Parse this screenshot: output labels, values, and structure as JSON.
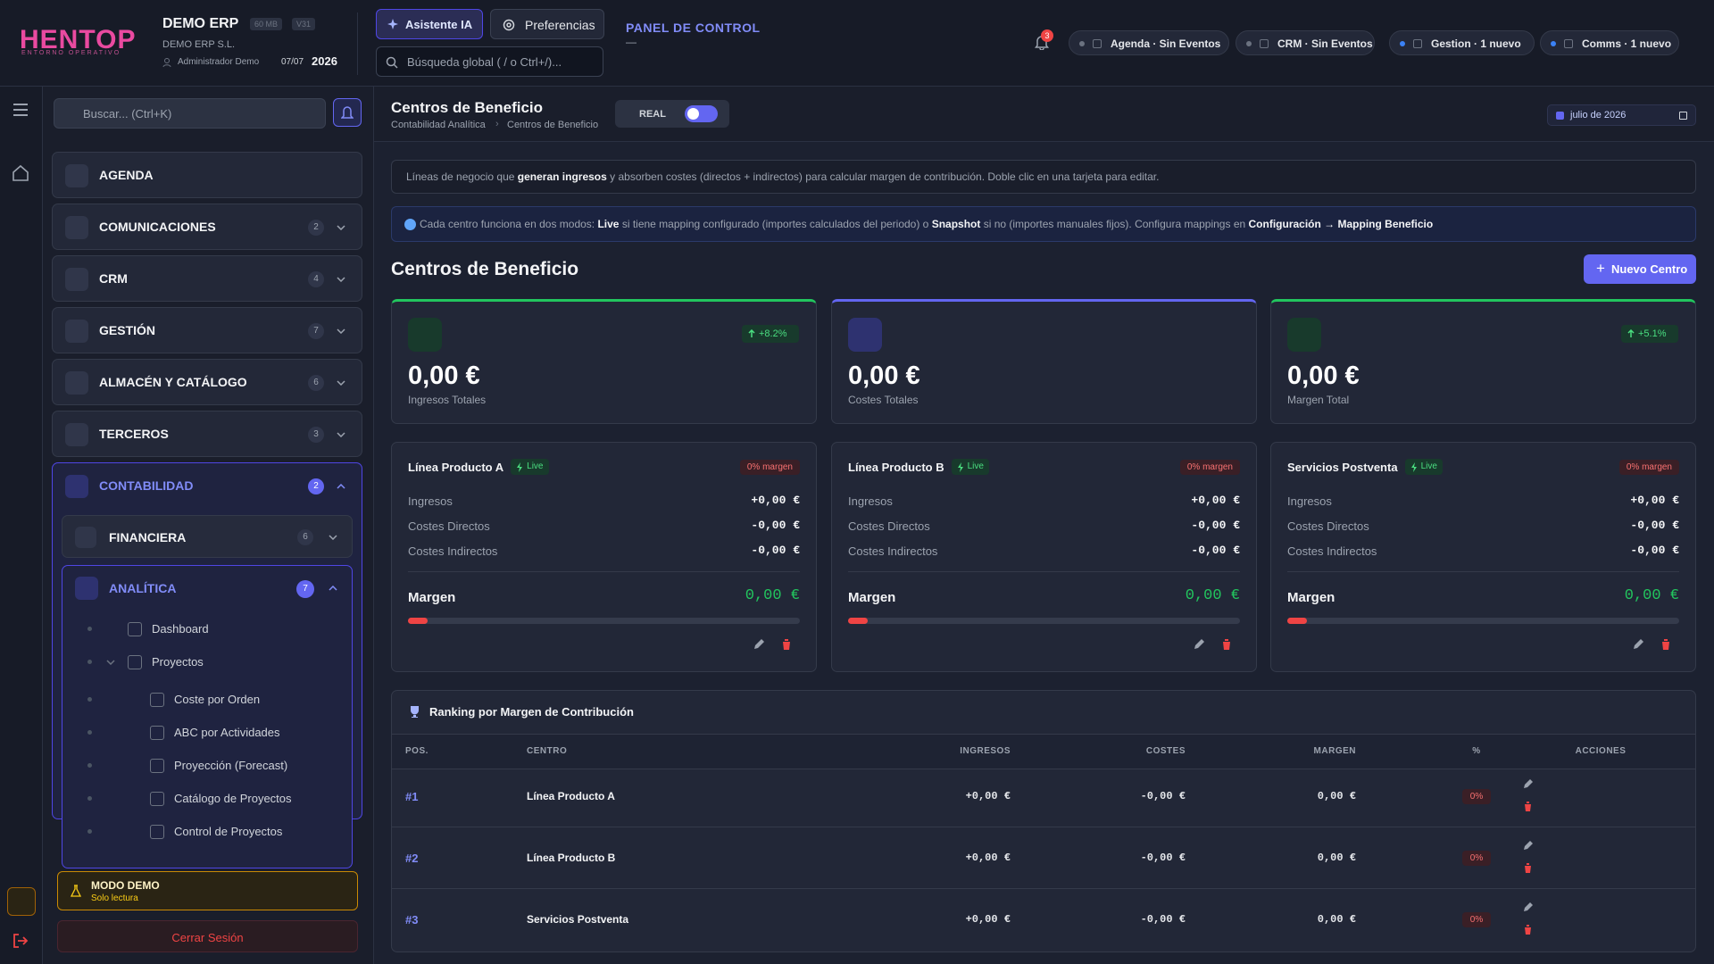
{
  "header": {
    "logo": "HENTOP",
    "logo_sub": "ENTORNO OPERATIVO",
    "company": "DEMO ERP",
    "badges": [
      "60 MB",
      "V31"
    ],
    "company_sub": "DEMO ERP S.L.",
    "user": "Administrador Demo",
    "date": "07/07",
    "year": "2026",
    "assistant": "Asistente IA",
    "preferences": "Preferencias",
    "search": "Búsqueda global ( / o Ctrl+/)...",
    "panel": "PANEL DE CONTROL",
    "panel_sub": "—",
    "notifications": "3",
    "status": [
      "Agenda · Sin Eventos",
      "CRM · Sin Eventos",
      "Gestion · 1 nuevo",
      "Comms · 1 nuevo"
    ]
  },
  "sidebar": {
    "search": "Buscar... (Ctrl+K)",
    "items": [
      {
        "label": "AGENDA"
      },
      {
        "label": "COMUNICACIONES",
        "count": "2"
      },
      {
        "label": "CRM",
        "count": "4"
      },
      {
        "label": "GESTIÓN",
        "count": "7"
      },
      {
        "label": "ALMACÉN Y CATÁLOGO",
        "count": "6"
      },
      {
        "label": "TERCEROS",
        "count": "3"
      },
      {
        "label": "CONTABILIDAD",
        "count": "2"
      }
    ],
    "financiera": {
      "label": "FINANCIERA",
      "count": "6"
    },
    "analitica": {
      "label": "ANALÍTICA",
      "count": "7"
    },
    "links": [
      "Dashboard",
      "Proyectos",
      "Coste por Orden",
      "ABC por Actividades",
      "Proyección (Forecast)",
      "Catálogo de Proyectos",
      "Control de Proyectos"
    ],
    "demo": {
      "title": "MODO DEMO",
      "sub": "Solo lectura"
    },
    "logout": "Cerrar Sesión"
  },
  "page": {
    "title": "Centros de Beneficio",
    "breadcrumb": [
      "Contabilidad Analítica",
      "Centros de Beneficio"
    ],
    "mode": "REAL",
    "month": "julio de 2026",
    "info": [
      "Líneas de negocio que ",
      "generan ingresos",
      " y absorben costes (directos + indirectos) para calcular margen de contribución. Doble clic en una tarjeta para editar."
    ],
    "notice": [
      "Cada centro funciona en dos modos: ",
      "Live",
      " si tiene mapping configurado (importes calculados del periodo) o ",
      "Snapshot",
      " si no (importes manuales fijos). Configura mappings en ",
      "Configuración → Mapping Beneficio"
    ],
    "section_title": "Centros de Beneficio",
    "new_button": "Nuevo Centro",
    "kpis": [
      {
        "value": "0,00 €",
        "label": "Ingresos Totales",
        "change": "+8.2%"
      },
      {
        "value": "0,00 €",
        "label": "Costes Totales"
      },
      {
        "value": "0,00 €",
        "label": "Margen Total",
        "change": "+5.1%"
      }
    ],
    "centers": [
      {
        "name": "Línea Producto A",
        "mode": "Live",
        "margin_pct": "0% margen",
        "rows": [
          {
            "label": "Ingresos",
            "value": "+0,00 €"
          },
          {
            "label": "Costes Directos",
            "value": "-0,00 €"
          },
          {
            "label": "Costes Indirectos",
            "value": "-0,00 €"
          }
        ],
        "margin_label": "Margen",
        "margin": "0,00 €"
      },
      {
        "name": "Línea Producto B",
        "mode": "Live",
        "margin_pct": "0% margen",
        "rows": [
          {
            "label": "Ingresos",
            "value": "+0,00 €"
          },
          {
            "label": "Costes Directos",
            "value": "-0,00 €"
          },
          {
            "label": "Costes Indirectos",
            "value": "-0,00 €"
          }
        ],
        "margin_label": "Margen",
        "margin": "0,00 €"
      },
      {
        "name": "Servicios Postventa",
        "mode": "Live",
        "margin_pct": "0% margen",
        "rows": [
          {
            "label": "Ingresos",
            "value": "+0,00 €"
          },
          {
            "label": "Costes Directos",
            "value": "-0,00 €"
          },
          {
            "label": "Costes Indirectos",
            "value": "-0,00 €"
          }
        ],
        "margin_label": "Margen",
        "margin": "0,00 €"
      }
    ],
    "ranking": {
      "title": "Ranking por Margen de Contribución",
      "headers": [
        "POS.",
        "CENTRO",
        "INGRESOS",
        "COSTES",
        "MARGEN",
        "%",
        "ACCIONES"
      ],
      "rows": [
        [
          "#1",
          "Línea Producto A",
          "+0,00 €",
          "-0,00 €",
          "0,00 €",
          "0%"
        ],
        [
          "#2",
          "Línea Producto B",
          "+0,00 €",
          "-0,00 €",
          "0,00 €",
          "0%"
        ],
        [
          "#3",
          "Servicios Postventa",
          "+0,00 €",
          "-0,00 €",
          "0,00 €",
          "0%"
        ]
      ]
    }
  }
}
